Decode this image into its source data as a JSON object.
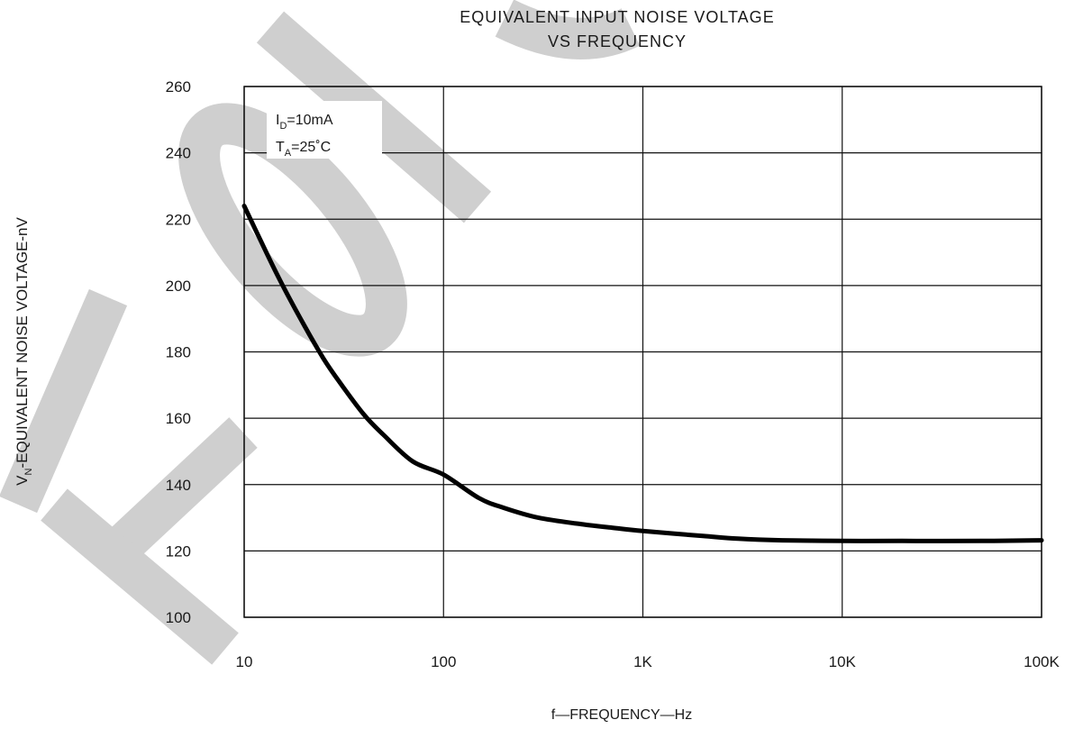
{
  "chart_data": {
    "type": "line",
    "title_lines": [
      "EQUIVALENT INPUT NOISE VOLTAGE",
      "VS FREQUENCY"
    ],
    "xlabel": "f—FREQUENCY—Hz",
    "ylabel_main": "V",
    "ylabel_sub": "N",
    "ylabel_rest": "-EQUIVALENT NOISE VOLTAGE-nV",
    "x_scale": "log",
    "xlim": [
      10,
      100000
    ],
    "ylim": [
      100,
      260
    ],
    "x_ticks": [
      {
        "value": 10,
        "label": "10"
      },
      {
        "value": 100,
        "label": "100"
      },
      {
        "value": 1000,
        "label": "1K"
      },
      {
        "value": 10000,
        "label": "10K"
      },
      {
        "value": 100000,
        "label": "100K"
      }
    ],
    "y_ticks": [
      100,
      120,
      140,
      160,
      180,
      200,
      220,
      240,
      260
    ],
    "grid": true,
    "annotations": [
      {
        "main": "I",
        "sub": "D",
        "rest": "=10mA"
      },
      {
        "main": "T",
        "sub": "A",
        "rest": "=25˚C"
      }
    ],
    "watermark": "HOTO",
    "series": [
      {
        "x": [
          10,
          12,
          15,
          20,
          25,
          30,
          40,
          50,
          70,
          100,
          150,
          200,
          300,
          500,
          700,
          1000,
          2000,
          3000,
          5000,
          10000,
          20000,
          50000,
          100000
        ],
        "y": [
          224,
          214,
          202,
          188,
          178,
          171,
          161,
          155,
          147,
          143,
          136,
          133,
          130,
          128,
          127,
          126,
          124.5,
          123.7,
          123.2,
          123,
          123,
          123,
          123.2
        ]
      }
    ]
  }
}
